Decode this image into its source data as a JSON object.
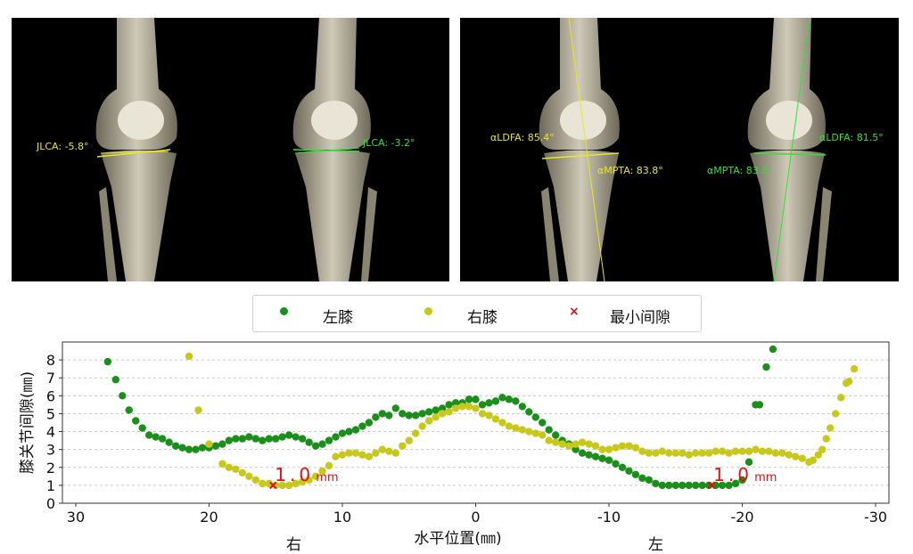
{
  "xray_left": {
    "annotations": [
      {
        "text": "JLCA: -5.8°",
        "color": "#e6e62a"
      },
      {
        "text": "JLCA: -3.2°",
        "color": "#36e036"
      }
    ]
  },
  "xray_right": {
    "annotations": [
      {
        "text": "αLDFA: 85.4°",
        "color": "#e6e62a"
      },
      {
        "text": "αMPTA: 83.8°",
        "color": "#e6e62a"
      },
      {
        "text": "αMPTA: 83.8°",
        "color": "#36e036"
      },
      {
        "text": "αLDFA: 81.5°",
        "color": "#36e036"
      }
    ]
  },
  "legend": {
    "items": [
      {
        "label": "左膝",
        "color": "#1a8f1a",
        "marker": "dot"
      },
      {
        "label": "右膝",
        "color": "#c8c81a",
        "marker": "dot"
      },
      {
        "label": "最小间隙",
        "color": "#e01010",
        "marker": "x"
      }
    ]
  },
  "bottom_labels": {
    "right": "右",
    "left": "左"
  },
  "chart_data": {
    "type": "scatter",
    "title": "",
    "xlabel": "水平位置(㎜)",
    "ylabel": "膝关节间隙(㎜)",
    "xlim": [
      31,
      -31
    ],
    "ylim": [
      0,
      9
    ],
    "xticks": [
      30,
      20,
      10,
      0,
      -10,
      -20,
      -30
    ],
    "yticks": [
      0,
      1,
      2,
      3,
      4,
      5,
      6,
      7,
      8
    ],
    "grid": "horizontal-dashed",
    "series": [
      {
        "name": "左膝",
        "color": "#1a8f1a",
        "points": [
          [
            27.6,
            7.9
          ],
          [
            27.0,
            6.9
          ],
          [
            26.5,
            6.0
          ],
          [
            26.0,
            5.2
          ],
          [
            25.5,
            4.6
          ],
          [
            25.0,
            4.2
          ],
          [
            24.5,
            3.8
          ],
          [
            24.0,
            3.7
          ],
          [
            23.5,
            3.6
          ],
          [
            23.0,
            3.4
          ],
          [
            22.5,
            3.2
          ],
          [
            22.0,
            3.1
          ],
          [
            21.5,
            3.0
          ],
          [
            21.0,
            3.0
          ],
          [
            20.5,
            3.1
          ],
          [
            20.0,
            3.1
          ],
          [
            19.5,
            3.2
          ],
          [
            19.0,
            3.3
          ],
          [
            18.5,
            3.5
          ],
          [
            18.0,
            3.6
          ],
          [
            17.5,
            3.6
          ],
          [
            17.0,
            3.7
          ],
          [
            16.5,
            3.6
          ],
          [
            16.0,
            3.5
          ],
          [
            15.5,
            3.6
          ],
          [
            15.0,
            3.6
          ],
          [
            14.5,
            3.7
          ],
          [
            14.0,
            3.8
          ],
          [
            13.5,
            3.7
          ],
          [
            13.0,
            3.6
          ],
          [
            12.5,
            3.4
          ],
          [
            12.0,
            3.2
          ],
          [
            11.5,
            3.3
          ],
          [
            11.0,
            3.5
          ],
          [
            10.5,
            3.7
          ],
          [
            10.0,
            3.9
          ],
          [
            9.5,
            4.0
          ],
          [
            9.0,
            4.1
          ],
          [
            8.5,
            4.3
          ],
          [
            8.0,
            4.5
          ],
          [
            7.5,
            4.8
          ],
          [
            7.0,
            5.0
          ],
          [
            6.5,
            4.9
          ],
          [
            6.0,
            5.3
          ],
          [
            5.5,
            5.0
          ],
          [
            5.0,
            4.9
          ],
          [
            4.5,
            4.9
          ],
          [
            4.0,
            5.0
          ],
          [
            3.5,
            5.1
          ],
          [
            3.0,
            5.2
          ],
          [
            2.5,
            5.3
          ],
          [
            2.0,
            5.5
          ],
          [
            1.5,
            5.6
          ],
          [
            1.0,
            5.6
          ],
          [
            0.5,
            5.8
          ],
          [
            0.0,
            5.8
          ],
          [
            -0.5,
            5.5
          ],
          [
            -1.0,
            5.6
          ],
          [
            -1.5,
            5.7
          ],
          [
            -2.0,
            5.9
          ],
          [
            -2.5,
            5.8
          ],
          [
            -3.0,
            5.7
          ],
          [
            -3.5,
            5.4
          ],
          [
            -4.0,
            5.1
          ],
          [
            -4.5,
            4.8
          ],
          [
            -5.0,
            4.5
          ],
          [
            -5.5,
            4.1
          ],
          [
            -6.0,
            3.8
          ],
          [
            -6.5,
            3.5
          ],
          [
            -7.0,
            3.3
          ],
          [
            -7.5,
            3.0
          ],
          [
            -8.0,
            2.8
          ],
          [
            -8.5,
            2.7
          ],
          [
            -9.0,
            2.6
          ],
          [
            -9.5,
            2.5
          ],
          [
            -10.0,
            2.4
          ],
          [
            -10.5,
            2.2
          ],
          [
            -11.0,
            2.0
          ],
          [
            -11.5,
            1.8
          ],
          [
            -12.0,
            1.6
          ],
          [
            -12.5,
            1.4
          ],
          [
            -13.0,
            1.3
          ],
          [
            -13.5,
            1.1
          ],
          [
            -14.0,
            1.0
          ],
          [
            -14.5,
            1.0
          ],
          [
            -15.0,
            1.0
          ],
          [
            -15.5,
            1.0
          ],
          [
            -16.0,
            1.0
          ],
          [
            -16.5,
            1.0
          ],
          [
            -17.0,
            1.0
          ],
          [
            -17.5,
            1.0
          ],
          [
            -18.0,
            1.0
          ],
          [
            -18.5,
            1.0
          ],
          [
            -19.0,
            1.0
          ],
          [
            -19.5,
            1.1
          ],
          [
            -20.0,
            1.3
          ],
          [
            -20.5,
            2.3
          ],
          [
            -21.0,
            5.5
          ],
          [
            -21.3,
            5.5
          ],
          [
            -21.8,
            7.6
          ],
          [
            -22.3,
            8.6
          ]
        ]
      },
      {
        "name": "右膝",
        "color": "#c8c81a",
        "points": [
          [
            21.5,
            8.2
          ],
          [
            20.8,
            5.2
          ],
          [
            20.0,
            3.3
          ],
          [
            19.0,
            2.2
          ],
          [
            18.5,
            2.0
          ],
          [
            18.0,
            1.9
          ],
          [
            17.5,
            1.7
          ],
          [
            17.0,
            1.5
          ],
          [
            16.5,
            1.3
          ],
          [
            16.0,
            1.1
          ],
          [
            15.5,
            1.1
          ],
          [
            15.0,
            1.0
          ],
          [
            14.5,
            1.0
          ],
          [
            14.0,
            1.0
          ],
          [
            13.5,
            1.1
          ],
          [
            13.0,
            1.2
          ],
          [
            12.5,
            1.3
          ],
          [
            12.0,
            1.5
          ],
          [
            11.5,
            1.8
          ],
          [
            11.0,
            2.1
          ],
          [
            10.5,
            2.6
          ],
          [
            10.0,
            2.7
          ],
          [
            9.5,
            2.8
          ],
          [
            9.0,
            2.8
          ],
          [
            8.5,
            2.7
          ],
          [
            8.0,
            2.6
          ],
          [
            7.5,
            2.8
          ],
          [
            7.0,
            3.0
          ],
          [
            6.5,
            2.9
          ],
          [
            6.0,
            2.8
          ],
          [
            5.5,
            3.2
          ],
          [
            5.0,
            3.5
          ],
          [
            4.5,
            3.9
          ],
          [
            4.0,
            4.3
          ],
          [
            3.5,
            4.6
          ],
          [
            3.0,
            4.8
          ],
          [
            2.5,
            5.0
          ],
          [
            2.0,
            5.1
          ],
          [
            1.5,
            5.3
          ],
          [
            1.0,
            5.4
          ],
          [
            0.5,
            5.4
          ],
          [
            0.0,
            5.3
          ],
          [
            -0.5,
            5.0
          ],
          [
            -1.0,
            4.9
          ],
          [
            -1.5,
            4.7
          ],
          [
            -2.0,
            4.5
          ],
          [
            -2.5,
            4.3
          ],
          [
            -3.0,
            4.2
          ],
          [
            -3.5,
            4.1
          ],
          [
            -4.0,
            4.0
          ],
          [
            -4.5,
            3.9
          ],
          [
            -5.0,
            3.8
          ],
          [
            -5.5,
            3.5
          ],
          [
            -6.0,
            3.4
          ],
          [
            -6.5,
            3.3
          ],
          [
            -7.0,
            3.2
          ],
          [
            -7.5,
            3.3
          ],
          [
            -8.0,
            3.4
          ],
          [
            -8.5,
            3.3
          ],
          [
            -9.0,
            3.2
          ],
          [
            -9.5,
            3.0
          ],
          [
            -10.0,
            3.0
          ],
          [
            -10.5,
            3.1
          ],
          [
            -11.0,
            3.2
          ],
          [
            -11.5,
            3.2
          ],
          [
            -12.0,
            3.1
          ],
          [
            -12.5,
            2.9
          ],
          [
            -13.0,
            2.8
          ],
          [
            -13.5,
            2.8
          ],
          [
            -14.0,
            2.9
          ],
          [
            -14.5,
            2.8
          ],
          [
            -15.0,
            2.8
          ],
          [
            -15.5,
            2.8
          ],
          [
            -16.0,
            2.7
          ],
          [
            -16.5,
            2.8
          ],
          [
            -17.0,
            2.8
          ],
          [
            -17.5,
            2.8
          ],
          [
            -18.0,
            2.9
          ],
          [
            -18.5,
            2.9
          ],
          [
            -19.0,
            2.8
          ],
          [
            -19.5,
            2.9
          ],
          [
            -20.0,
            2.9
          ],
          [
            -20.5,
            2.9
          ],
          [
            -21.0,
            3.0
          ],
          [
            -21.5,
            2.9
          ],
          [
            -22.0,
            2.9
          ],
          [
            -22.5,
            2.8
          ],
          [
            -23.0,
            2.8
          ],
          [
            -23.5,
            2.7
          ],
          [
            -24.0,
            2.6
          ],
          [
            -24.5,
            2.5
          ],
          [
            -25.0,
            2.3
          ],
          [
            -25.3,
            2.4
          ],
          [
            -25.7,
            2.7
          ],
          [
            -26.0,
            3.0
          ],
          [
            -26.3,
            3.6
          ],
          [
            -26.6,
            4.2
          ],
          [
            -27.0,
            5.0
          ],
          [
            -27.4,
            5.9
          ],
          [
            -27.8,
            6.7
          ],
          [
            -28.0,
            6.8
          ],
          [
            -28.4,
            7.5
          ]
        ]
      },
      {
        "name": "最小间隙",
        "color": "#e01010",
        "marker": "x",
        "points": [
          [
            15.2,
            1.0
          ],
          [
            -17.7,
            1.0
          ]
        ]
      }
    ],
    "annotations": [
      {
        "text": "1.0",
        "unit": "mm",
        "x": 15.2,
        "y": 1.0
      },
      {
        "text": "1.0",
        "unit": "mm",
        "x": -17.7,
        "y": 1.0
      }
    ]
  }
}
